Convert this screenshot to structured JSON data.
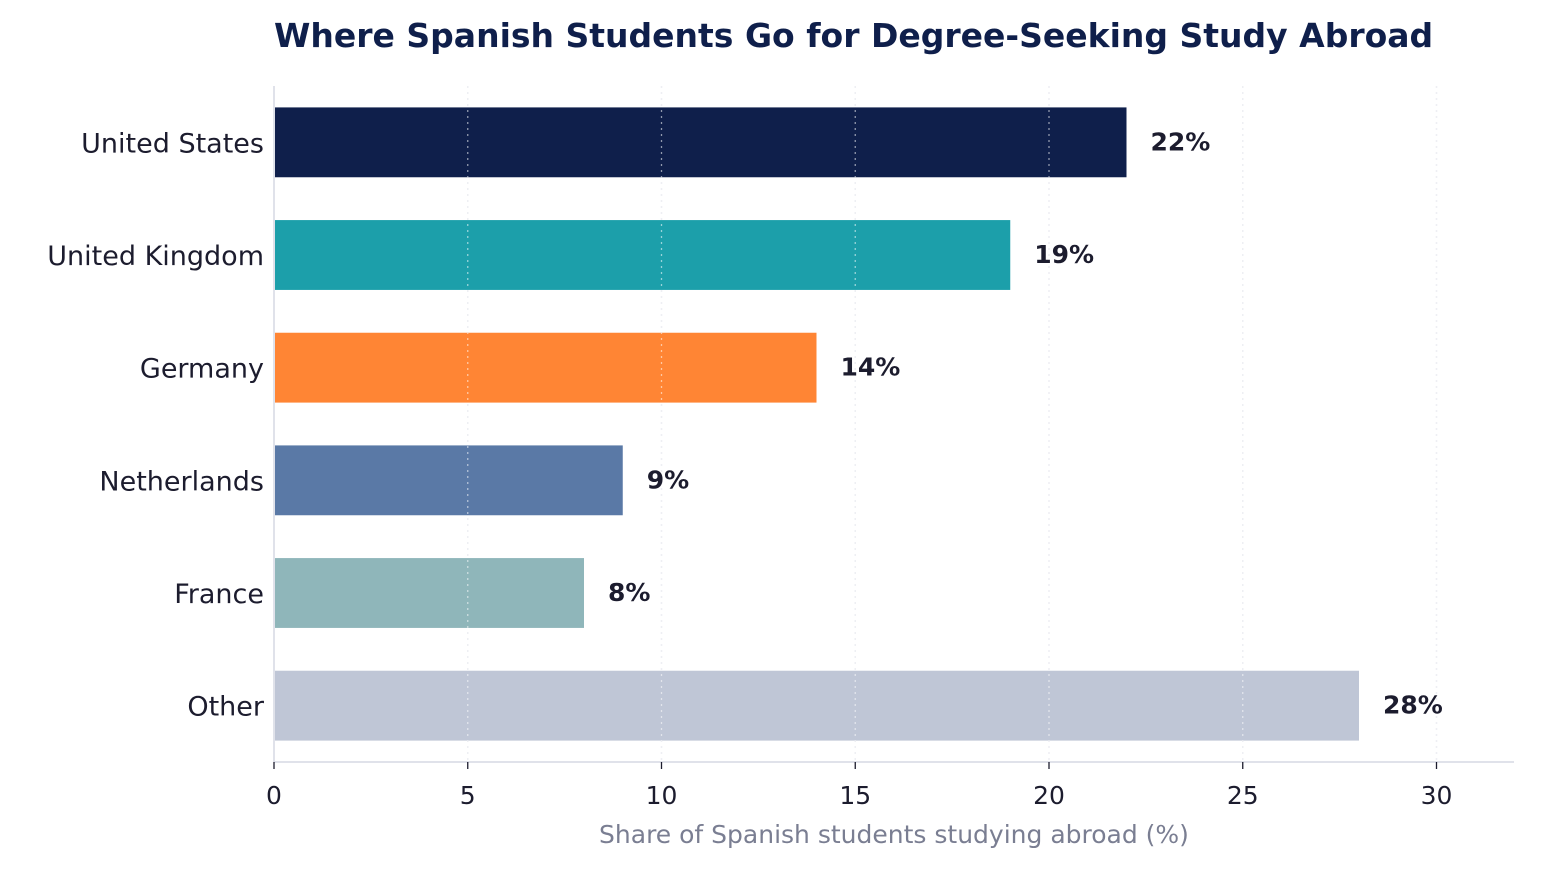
{
  "chart_data": {
    "type": "bar",
    "orientation": "horizontal",
    "title": "Where Spanish Students Go for Degree-Seeking Study Abroad",
    "xlabel": "Share of Spanish students studying abroad (%)",
    "ylabel": "",
    "categories": [
      "United States",
      "United Kingdom",
      "Germany",
      "Netherlands",
      "France",
      "Other"
    ],
    "values": [
      22,
      19,
      14,
      9,
      8,
      28
    ],
    "value_labels": [
      "22%",
      "19%",
      "14%",
      "9%",
      "8%",
      "28%"
    ],
    "colors": [
      "#0f1f4b",
      "#1c9faa",
      "#ff8534",
      "#5a79a6",
      "#8fb6ba",
      "#bfc6d6"
    ],
    "xlim": [
      0,
      32
    ],
    "xticks": [
      0,
      5,
      10,
      15,
      20,
      25,
      30
    ],
    "grid": "x-dotted",
    "legend": "none"
  }
}
